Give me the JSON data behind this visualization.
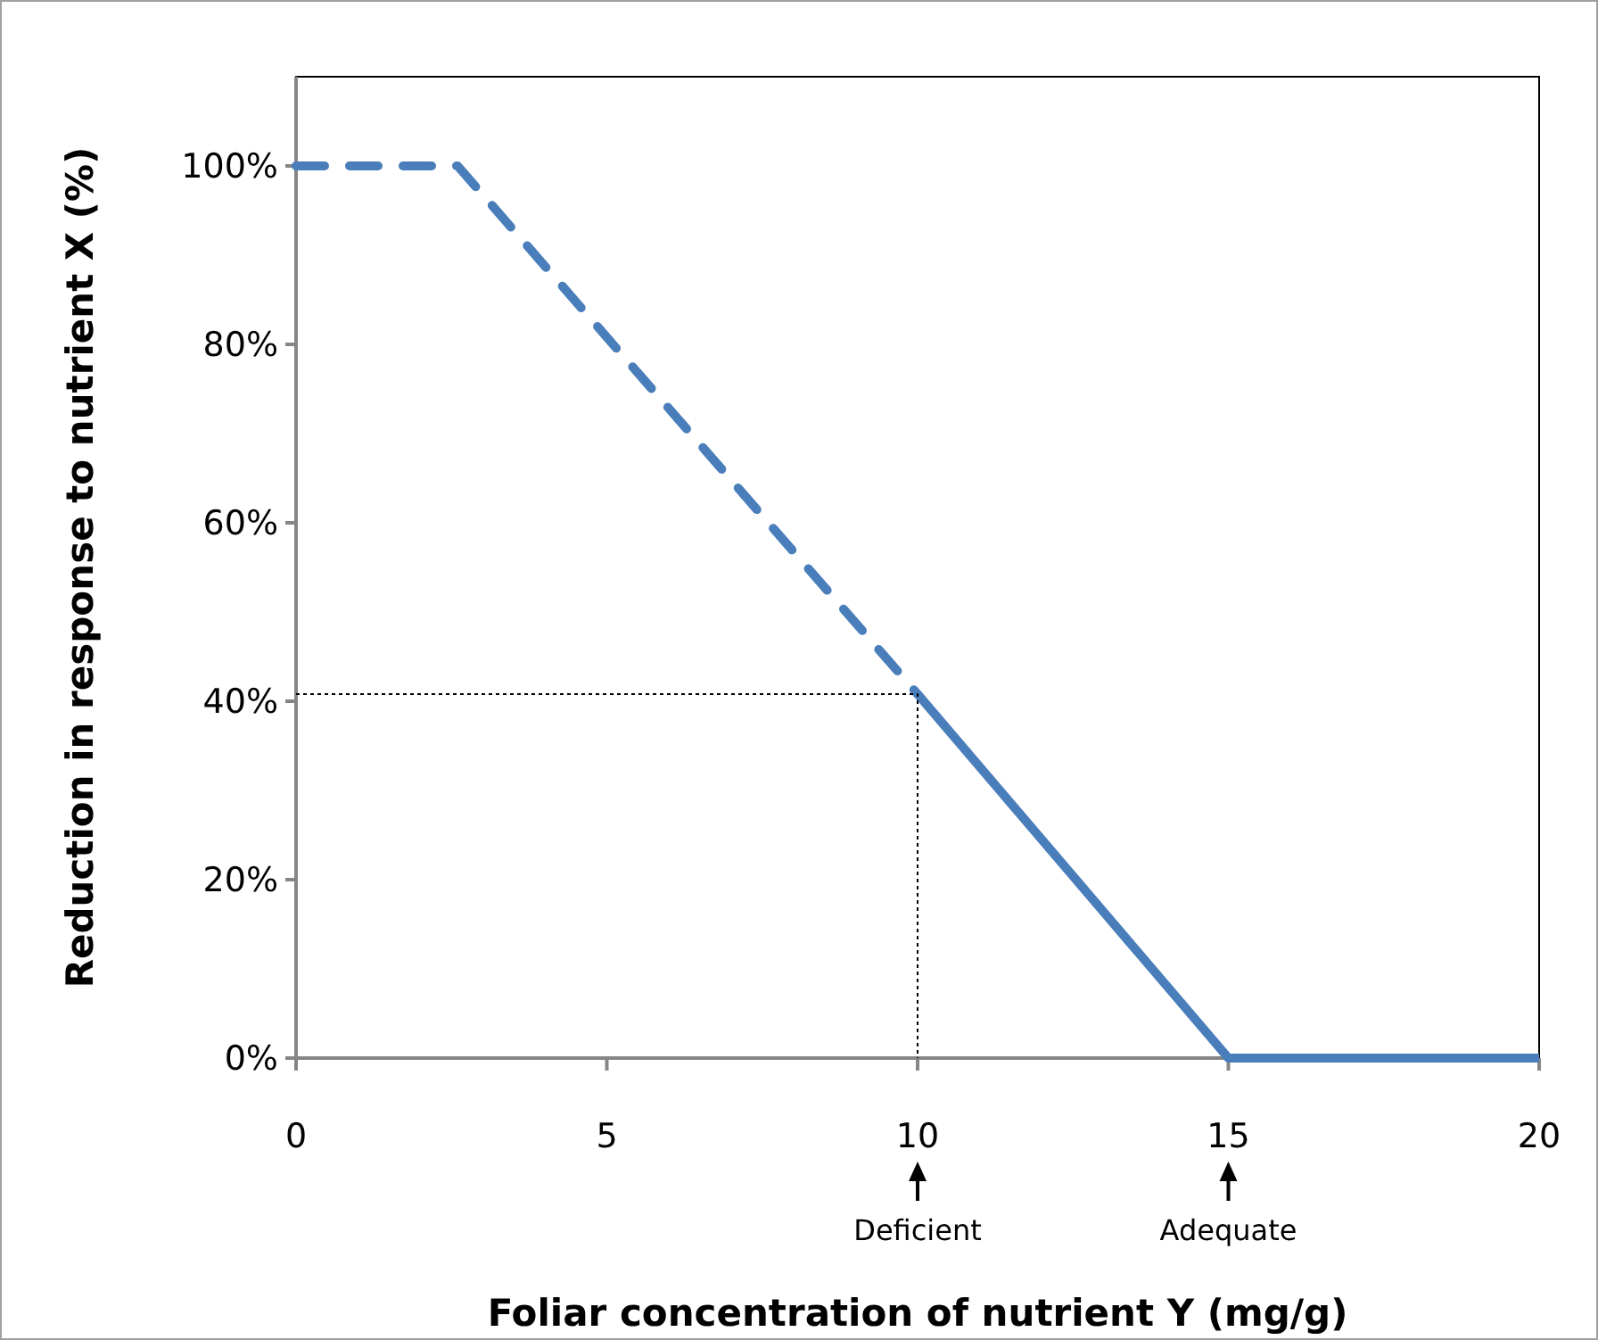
{
  "chart_data": {
    "type": "line",
    "xlabel": "Foliar concentration of nutrient Y (mg/g)",
    "ylabel": "Reduction in response to nutrient X (%)",
    "xlim": [
      0,
      20
    ],
    "xticks": [
      0,
      5,
      10,
      15,
      20
    ],
    "ylim": [
      0,
      110
    ],
    "yticks": [
      {
        "value": 0,
        "label": "0%"
      },
      {
        "value": 20,
        "label": "20%"
      },
      {
        "value": 40,
        "label": "40%"
      },
      {
        "value": 60,
        "label": "60%"
      },
      {
        "value": 80,
        "label": "80%"
      },
      {
        "value": 100,
        "label": "100%"
      }
    ],
    "grid": false,
    "marker": "none",
    "series": [
      {
        "color": "#4a7ebb",
        "line_style": "dashed",
        "x": [
          0,
          2.6,
          10
        ],
        "values": [
          100,
          100,
          40.8
        ]
      },
      {
        "color": "#4a7ebb",
        "line_style": "solid",
        "x": [
          10,
          15,
          20
        ],
        "values": [
          40.8,
          0,
          0
        ]
      },
      {
        "color": "#000000",
        "line_style": "dotted",
        "x": [
          0,
          10,
          10
        ],
        "values": [
          40.8,
          40.8,
          0
        ]
      }
    ],
    "annotations": [
      {
        "text": "Deficient",
        "x": 10
      },
      {
        "text": "Adequate",
        "x": 15
      }
    ]
  }
}
